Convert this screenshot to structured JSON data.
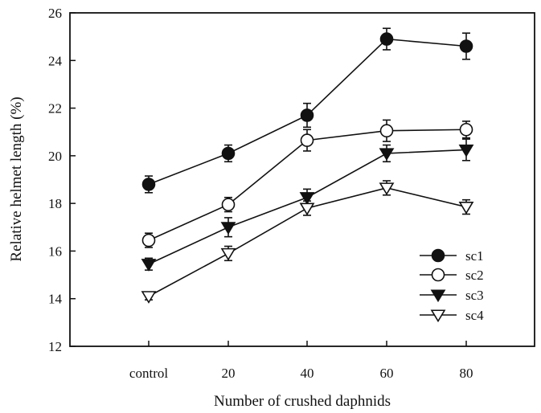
{
  "chart_data": {
    "type": "line",
    "xlabel": "Number of crushed daphnids",
    "ylabel": "Relative helmet length (%)",
    "categories": [
      "control",
      "20",
      "40",
      "60",
      "80"
    ],
    "ylim": [
      12,
      26
    ],
    "yticks": [
      12,
      14,
      16,
      18,
      20,
      22,
      24,
      26
    ],
    "grid": false,
    "legend_position": "lower-right",
    "series": [
      {
        "name": "sc1",
        "marker": "circle-filled",
        "values": [
          18.8,
          20.1,
          21.7,
          24.9,
          24.6
        ],
        "errors": [
          0.35,
          0.35,
          0.5,
          0.45,
          0.55
        ]
      },
      {
        "name": "sc2",
        "marker": "circle-open",
        "values": [
          16.45,
          17.95,
          20.65,
          21.05,
          21.1
        ],
        "errors": [
          0.3,
          0.3,
          0.45,
          0.45,
          0.35
        ]
      },
      {
        "name": "sc3",
        "marker": "triangle-down-filled",
        "values": [
          15.45,
          17.0,
          18.25,
          20.1,
          20.25
        ],
        "errors": [
          0.25,
          0.4,
          0.35,
          0.35,
          0.45
        ]
      },
      {
        "name": "sc4",
        "marker": "triangle-down-open",
        "values": [
          14.1,
          15.9,
          17.8,
          18.65,
          17.85
        ],
        "errors": [
          0.15,
          0.3,
          0.3,
          0.3,
          0.3
        ]
      }
    ]
  }
}
